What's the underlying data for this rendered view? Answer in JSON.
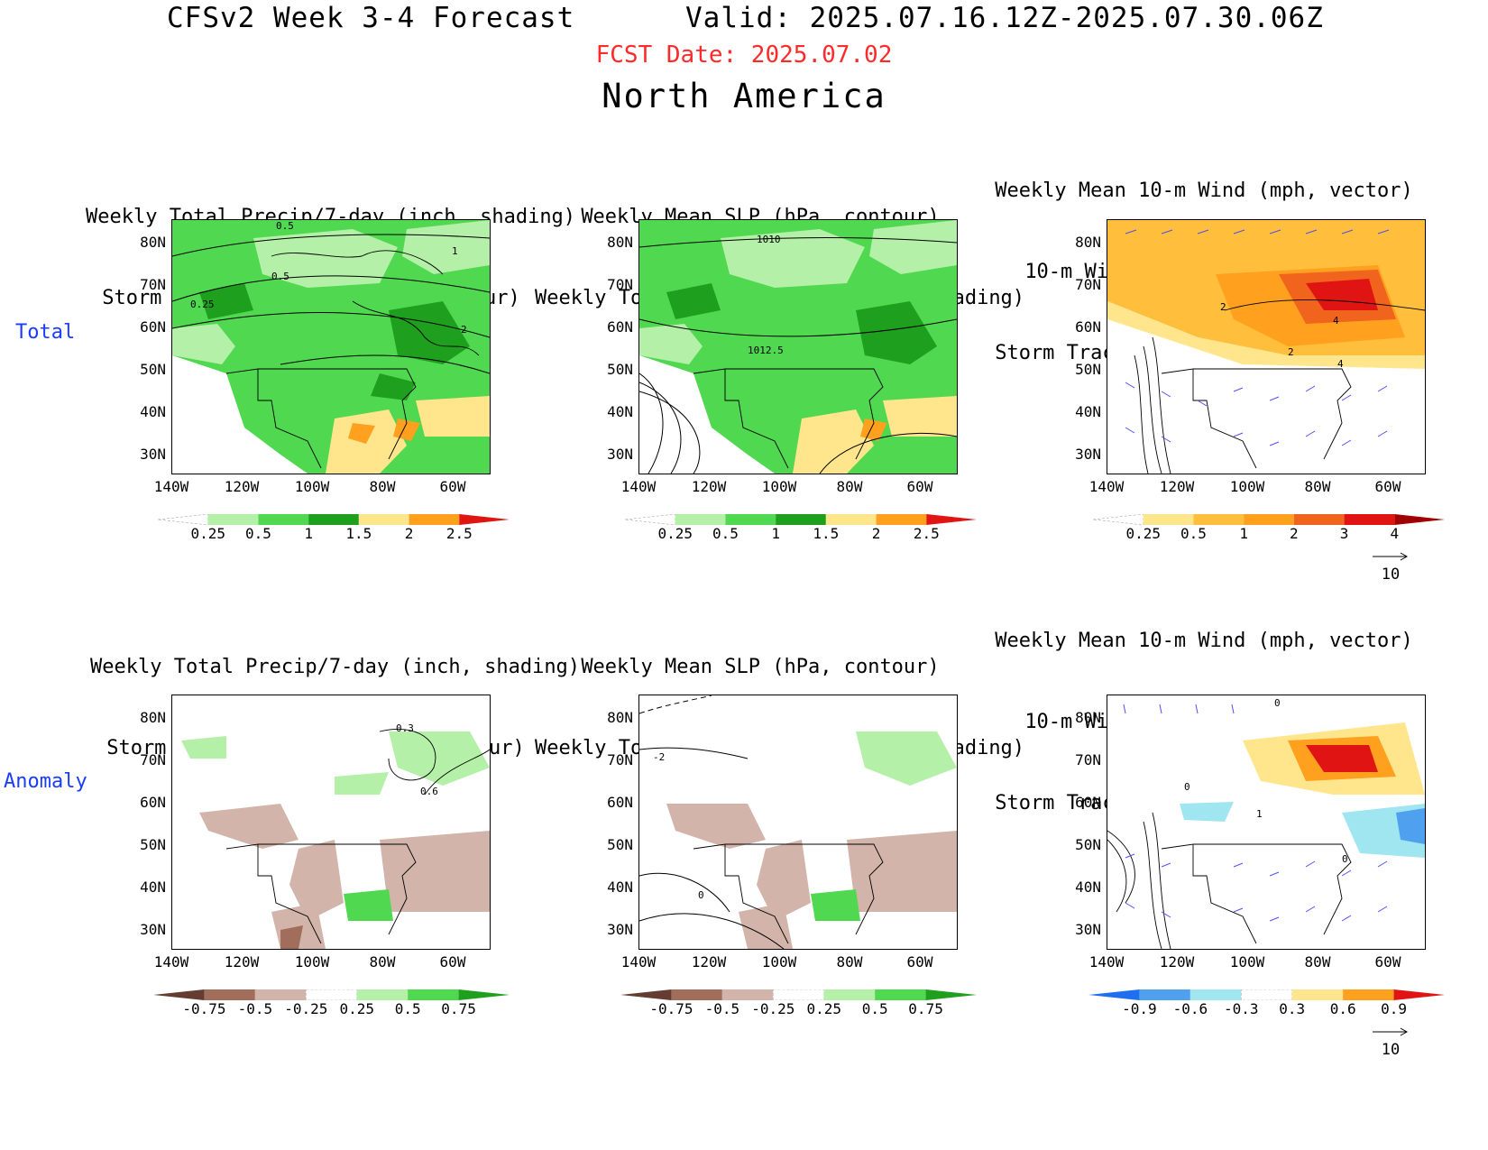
{
  "header": {
    "title": "CFSv2 Week 3-4 Forecast",
    "valid": "Valid: 2025.07.16.12Z-2025.07.30.06Z",
    "fcst_date": "FCST Date: 2025.07.02",
    "region": "North America"
  },
  "rows": {
    "total": "Total",
    "anomaly": "Anomaly"
  },
  "panel_titles": {
    "precip_storm": [
      "Weekly Total Precip/7-day (inch, shading)",
      "Storm Track Density/7-day (contour)"
    ],
    "slp_precip": [
      "Weekly Mean SLP (hPa, contour)",
      "Weekly Total Precip/7-day (inch, shading)"
    ],
    "wind_storm": [
      "Weekly Mean 10-m Wind (mph, vector)",
      "10-m Wind Speed (mph, contour)",
      "Storm Track Density/7-day (shading)"
    ]
  },
  "axes": {
    "lat_labels": [
      "80N",
      "70N",
      "60N",
      "50N",
      "40N",
      "30N"
    ],
    "lon_labels": [
      "140W",
      "120W",
      "100W",
      "80W",
      "60W"
    ]
  },
  "colorbars": {
    "precip_total": {
      "labels": [
        "0.25",
        "0.5",
        "1",
        "1.5",
        "2",
        "2.5"
      ],
      "colors": [
        "#ffffff",
        "#b4f0a8",
        "#50d850",
        "#1ea01e",
        "#ffe68c",
        "#ffa01e",
        "#e11414"
      ]
    },
    "storm_total": {
      "labels": [
        "0.25",
        "0.5",
        "1",
        "2",
        "3",
        "4"
      ],
      "colors": [
        "#ffffff",
        "#ffe68c",
        "#ffbe3c",
        "#ffa01e",
        "#f0641e",
        "#e11414",
        "#a00000"
      ]
    },
    "precip_anom": {
      "labels": [
        "-0.75",
        "-0.5",
        "-0.25",
        "0.25",
        "0.5",
        "0.75"
      ],
      "colors": [
        "#643c32",
        "#a06e5a",
        "#d2b4aa",
        "#ffffff",
        "#b4f0a8",
        "#50d850",
        "#1ea01e"
      ]
    },
    "storm_anom": {
      "labels": [
        "-0.9",
        "-0.6",
        "-0.3",
        "0.3",
        "0.6",
        "0.9"
      ],
      "colors": [
        "#1e6ef0",
        "#50a0f0",
        "#a0e6f0",
        "#ffffff",
        "#ffe68c",
        "#ffa01e",
        "#e11414"
      ]
    }
  },
  "contour_labels": {
    "p1": [
      "0.5",
      "1",
      "0.5",
      "0.25",
      "2"
    ],
    "p2": [
      "1010",
      "1012.5"
    ],
    "p3": [
      "2",
      "4",
      "2",
      "4"
    ],
    "p4": [
      "0.3",
      "0.6"
    ],
    "p5": [
      "-2",
      "0"
    ],
    "p6": [
      "0",
      "0",
      "1",
      "0"
    ]
  },
  "vector_reference": "10"
}
